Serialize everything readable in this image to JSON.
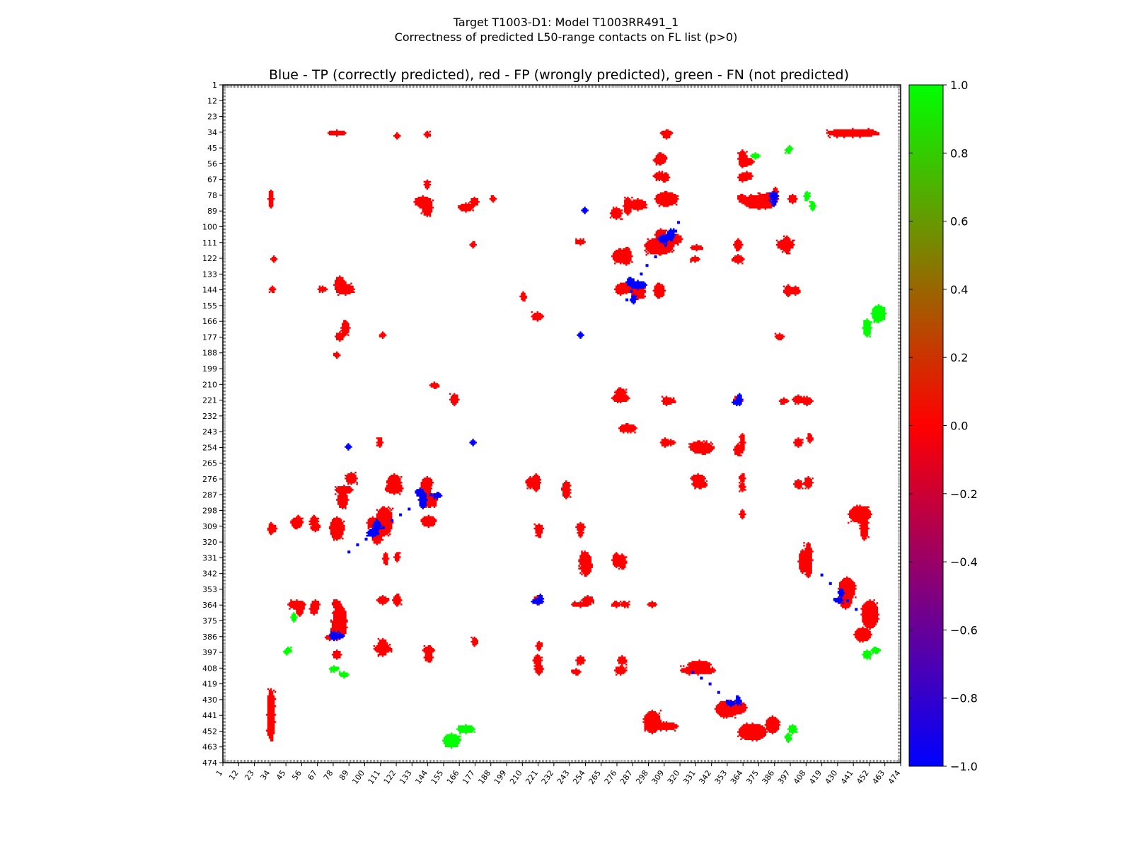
{
  "suptitle_line1": "Target T1003-D1: Model T1003RR491_1",
  "suptitle_line2": "Correctness of predicted L50-range contacts on FL list (p>0)",
  "chart_data": {
    "type": "heatmap",
    "title": "Blue - TP (correctly predicted), red - FP (wrongly predicted), green - FN (not predicted)",
    "xlim": [
      1,
      474
    ],
    "ylim": [
      1,
      474
    ],
    "y_inverted": true,
    "x_ticks": [
      1,
      12,
      23,
      34,
      45,
      56,
      67,
      78,
      89,
      100,
      111,
      122,
      133,
      144,
      155,
      166,
      177,
      188,
      199,
      210,
      221,
      232,
      243,
      254,
      265,
      276,
      287,
      298,
      309,
      320,
      331,
      342,
      353,
      364,
      375,
      386,
      397,
      408,
      419,
      430,
      441,
      452,
      463,
      474
    ],
    "y_ticks": [
      1,
      12,
      23,
      34,
      45,
      56,
      67,
      78,
      89,
      100,
      111,
      122,
      133,
      144,
      155,
      166,
      177,
      188,
      199,
      210,
      221,
      232,
      243,
      254,
      265,
      276,
      287,
      298,
      309,
      320,
      331,
      342,
      353,
      364,
      375,
      386,
      397,
      408,
      419,
      430,
      441,
      452,
      463,
      474
    ],
    "colorbar": {
      "min": -1.0,
      "max": 1.0,
      "ticks": [
        "1.0",
        "0.8",
        "0.6",
        "0.4",
        "0.2",
        "0.0",
        "−0.2",
        "−0.4",
        "−0.6",
        "−0.8",
        "−1.0"
      ],
      "colors": {
        "low": "#0000ff",
        "mid": "#ff0000",
        "high": "#00ff00"
      }
    },
    "legend": {
      "tp_value": -1.0,
      "fp_value": 0.0,
      "fn_value": 1.0
    },
    "contact_map": {
      "fp_regions": [
        [
          80,
          34,
          6,
          2
        ],
        [
          122,
          36,
          2,
          2
        ],
        [
          140,
          82,
          6,
          4
        ],
        [
          170,
          86,
          5,
          3
        ],
        [
          290,
          84,
          6,
          4
        ],
        [
          310,
          80,
          8,
          5
        ],
        [
          305,
          53,
          4,
          3
        ],
        [
          305,
          64,
          4,
          3
        ],
        [
          310,
          34,
          4,
          2
        ],
        [
          366,
          54,
          5,
          3
        ],
        [
          366,
          64,
          4,
          3
        ],
        [
          380,
          80,
          8,
          4
        ],
        [
          393,
          112,
          6,
          4
        ],
        [
          400,
          144,
          3,
          3
        ],
        [
          305,
          113,
          10,
          6
        ],
        [
          315,
          108,
          6,
          4
        ],
        [
          278,
          120,
          6,
          5
        ],
        [
          282,
          142,
          7,
          4
        ],
        [
          290,
          145,
          5,
          5
        ],
        [
          275,
          90,
          4,
          4
        ],
        [
          250,
          110,
          3,
          2
        ],
        [
          330,
          122,
          3,
          2
        ],
        [
          360,
          122,
          4,
          3
        ],
        [
          86,
          143,
          6,
          4
        ],
        [
          70,
          143,
          3,
          2
        ],
        [
          35,
          143,
          2,
          2
        ],
        [
          82,
          176,
          3,
          3
        ],
        [
          112,
          175,
          2,
          2
        ],
        [
          80,
          189,
          2,
          2
        ],
        [
          148,
          210,
          3,
          2
        ],
        [
          162,
          220,
          3,
          4
        ],
        [
          278,
          219,
          6,
          3
        ],
        [
          313,
          221,
          3,
          2
        ],
        [
          402,
          220,
          4,
          3
        ],
        [
          360,
          220,
          3,
          3
        ],
        [
          313,
          250,
          3,
          2
        ],
        [
          335,
          254,
          8,
          4
        ],
        [
          360,
          255,
          3,
          4
        ],
        [
          402,
          250,
          3,
          3
        ],
        [
          333,
          279,
          5,
          3
        ],
        [
          363,
          281,
          2,
          3
        ],
        [
          402,
          279,
          3,
          3
        ],
        [
          143,
          278,
          4,
          4
        ],
        [
          120,
          282,
          6,
          4
        ],
        [
          85,
          283,
          6,
          3
        ],
        [
          112,
          309,
          6,
          6
        ],
        [
          105,
          306,
          4,
          4
        ],
        [
          144,
          305,
          5,
          4
        ],
        [
          80,
          309,
          5,
          4
        ],
        [
          52,
          306,
          4,
          4
        ],
        [
          35,
          310,
          3,
          3
        ],
        [
          65,
          309,
          3,
          3
        ],
        [
          240,
          283,
          3,
          6
        ],
        [
          221,
          310,
          3,
          3
        ],
        [
          250,
          309,
          3,
          3
        ],
        [
          215,
          278,
          3,
          4
        ],
        [
          253,
          332,
          4,
          6
        ],
        [
          275,
          332,
          3,
          5
        ],
        [
          114,
          331,
          2,
          4
        ],
        [
          112,
          360,
          4,
          3
        ],
        [
          52,
          363,
          6,
          3
        ],
        [
          65,
          363,
          3,
          3
        ],
        [
          80,
          363,
          3,
          3
        ],
        [
          82,
          375,
          5,
          12
        ],
        [
          75,
          386,
          3,
          2
        ],
        [
          112,
          394,
          6,
          3
        ],
        [
          144,
          395,
          4,
          3
        ],
        [
          176,
          389,
          2,
          3
        ],
        [
          221,
          392,
          2,
          3
        ],
        [
          221,
          408,
          3,
          4
        ],
        [
          250,
          363,
          6,
          2
        ],
        [
          275,
          363,
          3,
          2
        ],
        [
          300,
          363,
          3,
          2
        ],
        [
          278,
          409,
          4,
          3
        ],
        [
          247,
          410,
          3,
          2
        ],
        [
          352,
          436,
          8,
          6
        ],
        [
          384,
          447,
          5,
          6
        ],
        [
          405,
          333,
          3,
          8
        ],
        [
          435,
          358,
          5,
          8
        ],
        [
          452,
          370,
          6,
          10
        ],
        [
          445,
          300,
          8,
          6
        ],
        [
          332,
          409,
          12,
          3
        ],
        [
          310,
          448,
          8,
          3
        ],
        [
          34,
          440,
          3,
          18
        ],
        [
          80,
          398,
          3,
          3
        ]
      ],
      "tp_regions": [
        [
          308,
          108,
          4,
          3
        ],
        [
          290,
          140,
          6,
          3
        ],
        [
          285,
          138,
          3,
          3
        ],
        [
          385,
          78,
          3,
          3
        ],
        [
          359,
          222,
          3,
          2
        ],
        [
          253,
          88,
          2,
          2
        ],
        [
          220,
          361,
          4,
          2
        ],
        [
          82,
          385,
          3,
          2
        ],
        [
          150,
          287,
          3,
          2
        ],
        [
          105,
          313,
          4,
          3
        ],
        [
          355,
          432,
          3,
          2
        ],
        [
          430,
          360,
          3,
          2
        ],
        [
          250,
          175,
          2,
          2
        ]
      ],
      "fn_regions": [
        [
          408,
          78,
          2,
          3
        ],
        [
          395,
          46,
          2,
          2
        ],
        [
          450,
          170,
          3,
          6
        ],
        [
          450,
          398,
          3,
          3
        ],
        [
          160,
          458,
          6,
          5
        ],
        [
          395,
          456,
          2,
          3
        ],
        [
          85,
          412,
          3,
          2
        ],
        [
          50,
          372,
          2,
          3
        ],
        [
          45,
          396,
          2,
          2
        ]
      ],
      "diagonal_tp_points": [
        [
          318,
          96
        ],
        [
          316,
          102
        ],
        [
          312,
          106
        ],
        [
          309,
          112
        ],
        [
          302,
          120
        ],
        [
          296,
          126
        ],
        [
          292,
          132
        ],
        [
          288,
          138
        ],
        [
          285,
          144
        ],
        [
          282,
          150
        ],
        [
          145,
          286
        ],
        [
          138,
          290
        ],
        [
          130,
          296
        ],
        [
          124,
          300
        ],
        [
          118,
          304
        ],
        [
          112,
          309
        ],
        [
          106,
          313
        ],
        [
          100,
          317
        ],
        [
          94,
          321
        ],
        [
          88,
          326
        ],
        [
          328,
          410
        ],
        [
          334,
          414
        ],
        [
          340,
          418
        ],
        [
          346,
          424
        ],
        [
          352,
          430
        ],
        [
          418,
          342
        ],
        [
          424,
          348
        ],
        [
          430,
          354
        ],
        [
          436,
          360
        ],
        [
          442,
          366
        ]
      ]
    }
  }
}
